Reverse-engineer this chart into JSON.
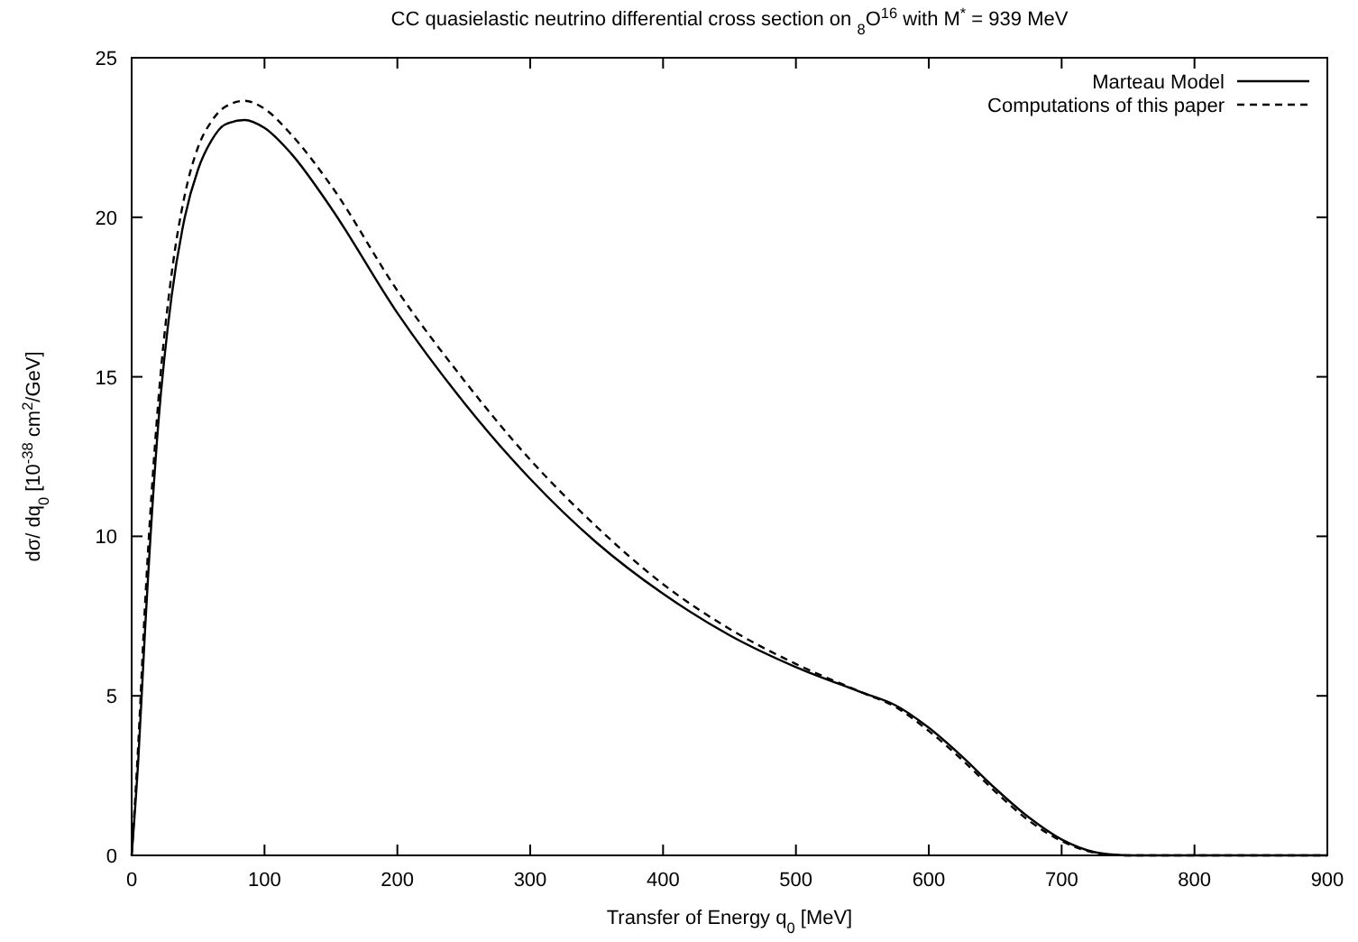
{
  "chart_data": {
    "type": "line",
    "title": "CC quasielastic neutrino differential cross section on $_{8}$O$^{16}$ with M$^{*}$ = 939 MeV",
    "xlabel": "Transfer of Energy q$_{0}$ [MeV]",
    "ylabel": "dσ/ dq$_{0}$ [10$^{-38}$ cm$^{2}$/GeV]",
    "x": [
      0,
      5,
      10,
      20,
      30,
      40,
      50,
      60,
      70,
      85,
      100,
      120,
      150,
      200,
      250,
      300,
      350,
      400,
      450,
      500,
      550,
      575,
      600,
      625,
      650,
      675,
      700,
      725,
      740,
      750,
      800,
      900
    ],
    "series": [
      {
        "name": "Marteau Model",
        "color": "#000000",
        "line_style": "solid",
        "values": [
          0,
          3,
          7,
          13.5,
          17.5,
          20,
          21.5,
          22.4,
          22.9,
          23.05,
          22.8,
          22,
          20.3,
          17,
          14.2,
          11.8,
          9.8,
          8.2,
          6.9,
          5.9,
          5.1,
          4.7,
          4.0,
          3.1,
          2.1,
          1.2,
          0.5,
          0.1,
          0.02,
          0,
          0,
          0
        ]
      },
      {
        "name": "Computations of this paper",
        "color": "#000000",
        "line_style": "dashed",
        "values": [
          0,
          3.5,
          7.8,
          14.2,
          18.2,
          20.7,
          22.2,
          23.0,
          23.45,
          23.65,
          23.4,
          22.6,
          21,
          17.7,
          14.9,
          12.4,
          10.3,
          8.5,
          7.1,
          6.0,
          5.1,
          4.65,
          3.9,
          3.0,
          2.0,
          1.1,
          0.45,
          0.08,
          0.01,
          0,
          0,
          0
        ]
      }
    ],
    "xlim": [
      0,
      900
    ],
    "xticks": [
      0,
      100,
      200,
      300,
      400,
      500,
      600,
      700,
      800,
      900
    ],
    "ylim": [
      0,
      25
    ],
    "yticks": [
      0,
      5,
      10,
      15,
      20,
      25
    ],
    "grid": false,
    "legend": "top right",
    "marker": "none"
  }
}
